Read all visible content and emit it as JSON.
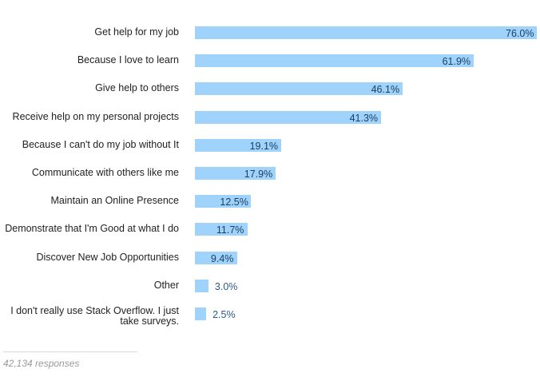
{
  "chart_data": {
    "type": "bar",
    "orientation": "horizontal",
    "categories": [
      "Get help for my job",
      "Because I love to learn",
      "Give help to others",
      "Receive help on my personal projects",
      "Because I can't do my job without It",
      "Communicate with others like me",
      "Maintain an Online Presence",
      "Demonstrate that I'm Good at what I do",
      "Discover New Job Opportunities",
      "Other",
      "I don't really use Stack Overflow. I just take surveys."
    ],
    "values": [
      76.0,
      61.9,
      46.1,
      41.3,
      19.1,
      17.9,
      12.5,
      11.7,
      9.4,
      3.0,
      2.5
    ],
    "value_labels": [
      "76.0%",
      "61.9%",
      "46.1%",
      "41.3%",
      "19.1%",
      "17.9%",
      "12.5%",
      "11.7%",
      "9.4%",
      "3.0%",
      "2.5%"
    ],
    "unit": "%",
    "xlim": [
      0,
      76.0
    ],
    "grid": false,
    "bar_color": "#9fd3fb",
    "label_color": "#2b5c8a"
  },
  "footer": {
    "responses": "42,134 responses"
  }
}
